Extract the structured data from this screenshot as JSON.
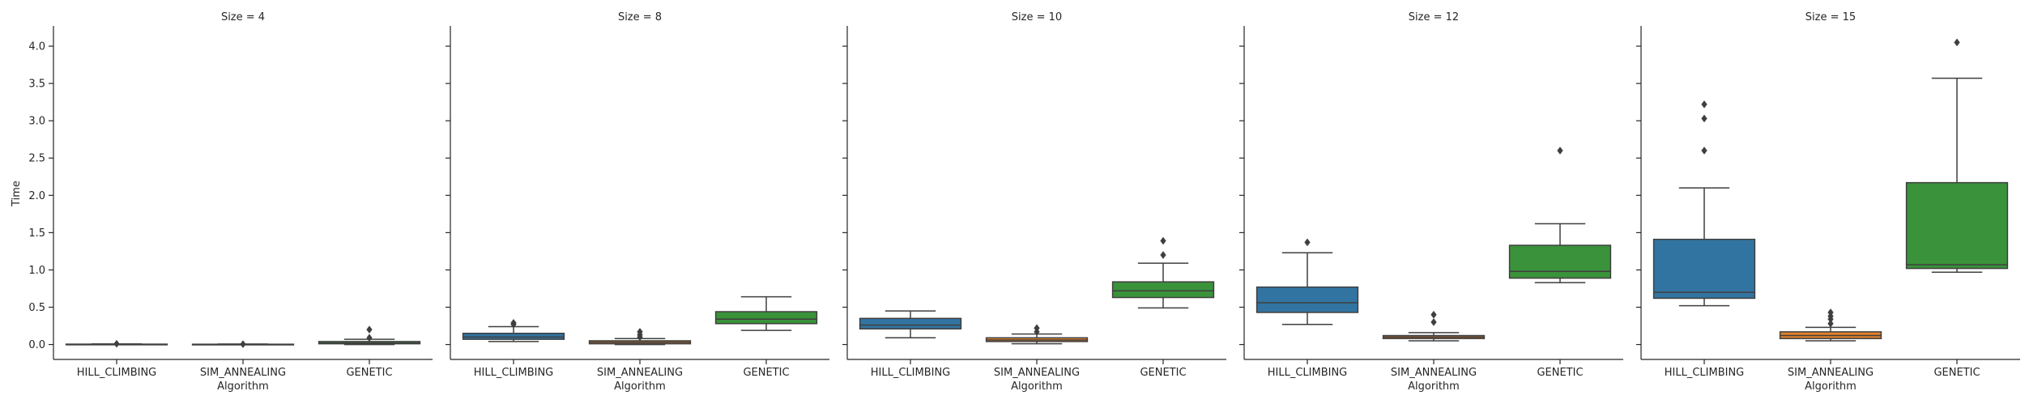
{
  "chart_data": {
    "type": "box",
    "ylabel": "Time",
    "xlabel": "Algorithm",
    "ylim": [
      -0.2,
      4.25
    ],
    "yticks": [
      "0.0",
      "0.5",
      "1.0",
      "1.5",
      "2.0",
      "2.5",
      "3.0",
      "3.5",
      "4.0"
    ],
    "categories": [
      "HILL_CLIMBING",
      "SIM_ANNEALING",
      "GENETIC"
    ],
    "colors": {
      "HILL_CLIMBING": "#3274a1",
      "SIM_ANNEALING": "#e1812c",
      "GENETIC": "#3a923a"
    },
    "panels": [
      {
        "title": "Size = 4",
        "boxes": [
          {
            "category": "HILL_CLIMBING",
            "whisker_low": 0.0,
            "q1": 0.0,
            "median": 0.0,
            "q3": 0.005,
            "whisker_high": 0.008,
            "outliers": [
              0.01
            ]
          },
          {
            "category": "SIM_ANNEALING",
            "whisker_low": 0.0,
            "q1": 0.0,
            "median": 0.0,
            "q3": 0.004,
            "whisker_high": 0.006,
            "outliers": [
              0.005
            ]
          },
          {
            "category": "GENETIC",
            "whisker_low": 0.0,
            "q1": 0.01,
            "median": 0.02,
            "q3": 0.04,
            "whisker_high": 0.07,
            "outliers": [
              0.09,
              0.2
            ]
          }
        ]
      },
      {
        "title": "Size = 8",
        "boxes": [
          {
            "category": "HILL_CLIMBING",
            "whisker_low": 0.04,
            "q1": 0.07,
            "median": 0.1,
            "q3": 0.15,
            "whisker_high": 0.24,
            "outliers": [
              0.27,
              0.29
            ]
          },
          {
            "category": "SIM_ANNEALING",
            "whisker_low": 0.0,
            "q1": 0.01,
            "median": 0.03,
            "q3": 0.05,
            "whisker_high": 0.08,
            "outliers": [
              0.1,
              0.13,
              0.17
            ]
          },
          {
            "category": "GENETIC",
            "whisker_low": 0.19,
            "q1": 0.28,
            "median": 0.34,
            "q3": 0.44,
            "whisker_high": 0.64,
            "outliers": []
          }
        ]
      },
      {
        "title": "Size = 10",
        "boxes": [
          {
            "category": "HILL_CLIMBING",
            "whisker_low": 0.09,
            "q1": 0.21,
            "median": 0.26,
            "q3": 0.35,
            "whisker_high": 0.45,
            "outliers": []
          },
          {
            "category": "SIM_ANNEALING",
            "whisker_low": 0.01,
            "q1": 0.04,
            "median": 0.06,
            "q3": 0.09,
            "whisker_high": 0.14,
            "outliers": [
              0.17,
              0.22
            ]
          },
          {
            "category": "GENETIC",
            "whisker_low": 0.49,
            "q1": 0.63,
            "median": 0.72,
            "q3": 0.84,
            "whisker_high": 1.09,
            "outliers": [
              1.2,
              1.39
            ]
          }
        ]
      },
      {
        "title": "Size = 12",
        "boxes": [
          {
            "category": "HILL_CLIMBING",
            "whisker_low": 0.27,
            "q1": 0.43,
            "median": 0.56,
            "q3": 0.77,
            "whisker_high": 1.23,
            "outliers": [
              1.37
            ]
          },
          {
            "category": "SIM_ANNEALING",
            "whisker_low": 0.05,
            "q1": 0.08,
            "median": 0.1,
            "q3": 0.12,
            "whisker_high": 0.16,
            "outliers": [
              0.3,
              0.4
            ]
          },
          {
            "category": "GENETIC",
            "whisker_low": 0.83,
            "q1": 0.89,
            "median": 0.98,
            "q3": 1.33,
            "whisker_high": 1.62,
            "outliers": [
              2.6
            ]
          }
        ]
      },
      {
        "title": "Size = 15",
        "boxes": [
          {
            "category": "HILL_CLIMBING",
            "whisker_low": 0.52,
            "q1": 0.62,
            "median": 0.7,
            "q3": 1.41,
            "whisker_high": 2.1,
            "outliers": [
              2.6,
              3.03,
              3.22
            ]
          },
          {
            "category": "SIM_ANNEALING",
            "whisker_low": 0.05,
            "q1": 0.08,
            "median": 0.12,
            "q3": 0.17,
            "whisker_high": 0.23,
            "outliers": [
              0.28,
              0.34,
              0.38,
              0.43
            ]
          },
          {
            "category": "GENETIC",
            "whisker_low": 0.97,
            "q1": 1.02,
            "median": 1.07,
            "q3": 2.17,
            "whisker_high": 3.57,
            "outliers": [
              4.05
            ]
          }
        ]
      }
    ]
  }
}
